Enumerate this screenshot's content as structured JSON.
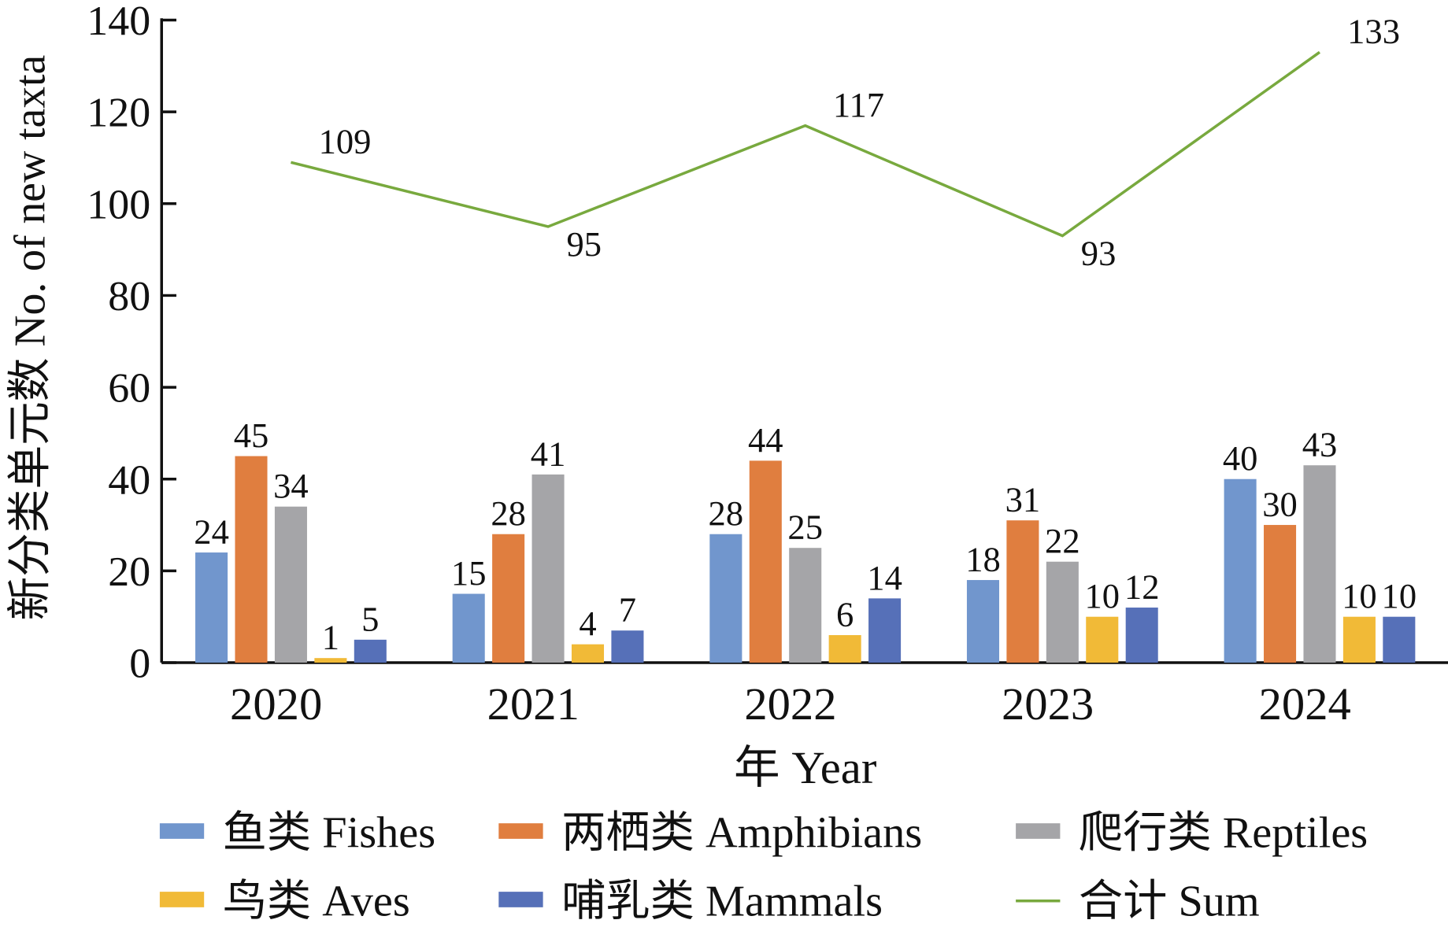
{
  "chart_data": {
    "type": "bar",
    "title": "",
    "xlabel": "年 Year",
    "ylabel": "新分类单元数 No. of new taxta",
    "ylim": [
      0,
      140
    ],
    "yticks": [
      0,
      20,
      40,
      60,
      80,
      100,
      120,
      140
    ],
    "categories": [
      "2020",
      "2021",
      "2022",
      "2023",
      "2024"
    ],
    "series": [
      {
        "name": "鱼类 Fishes",
        "type": "bar",
        "color": "#7196cd",
        "values": [
          24,
          15,
          28,
          18,
          40
        ]
      },
      {
        "name": "两栖类 Amphibians",
        "type": "bar",
        "color": "#e07e3f",
        "values": [
          45,
          28,
          44,
          31,
          30
        ]
      },
      {
        "name": "爬行类 Reptiles",
        "type": "bar",
        "color": "#a5a5a8",
        "values": [
          34,
          41,
          25,
          22,
          43
        ]
      },
      {
        "name": "鸟类 Aves",
        "type": "bar",
        "color": "#f1ba37",
        "values": [
          1,
          4,
          6,
          10,
          10
        ]
      },
      {
        "name": "哺乳类 Mammals",
        "type": "bar",
        "color": "#5670b8",
        "values": [
          5,
          7,
          14,
          12,
          10
        ]
      },
      {
        "name": "合计 Sum",
        "type": "line",
        "color": "#78a93e",
        "values": [
          109,
          95,
          117,
          93,
          133
        ]
      }
    ],
    "grid": false,
    "legend": "bottom"
  }
}
